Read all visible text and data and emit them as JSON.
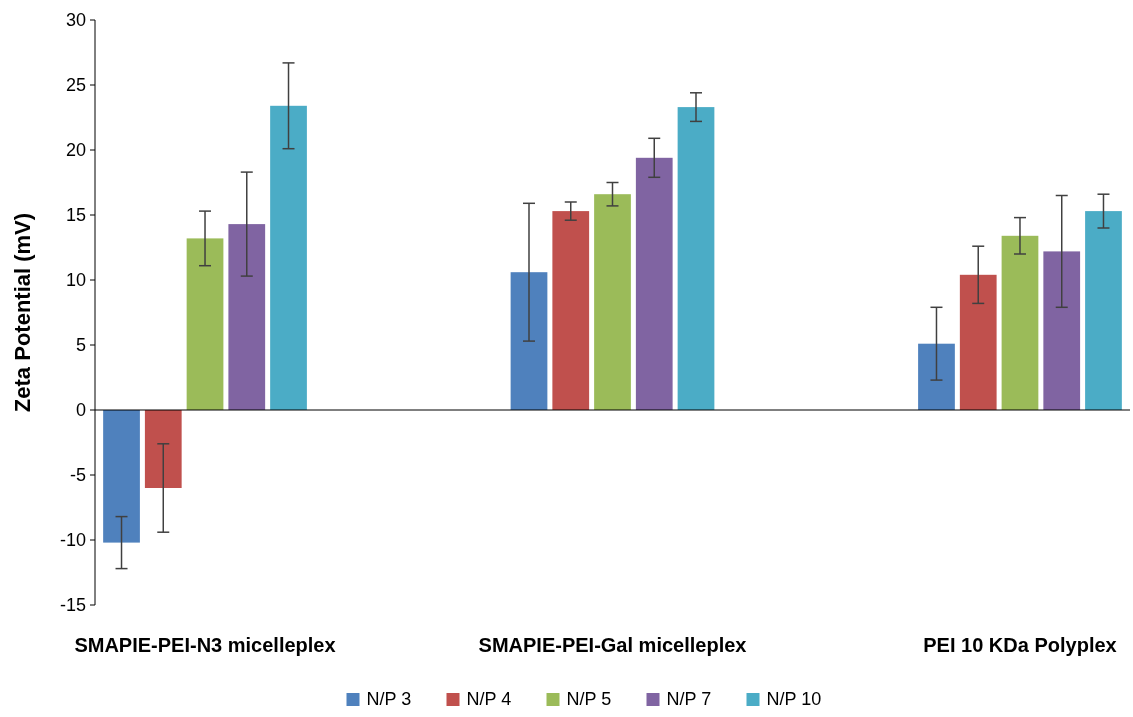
{
  "chart_data": {
    "type": "bar",
    "ylabel": "Zeta Potential (mV)",
    "categories": [
      "SMAPIE-PEI-N3 micelleplex",
      "SMAPIE-PEI-Gal micelleplex",
      "PEI 10 KDa Polyplex"
    ],
    "series": [
      {
        "name": "N/P  3",
        "color": "#4f81bd",
        "values": [
          -10.2,
          10.6,
          5.1
        ],
        "errors": [
          2.0,
          5.3,
          2.8
        ]
      },
      {
        "name": "N/P  4",
        "color": "#c0504d",
        "values": [
          -6.0,
          15.3,
          10.4
        ],
        "errors": [
          3.4,
          0.7,
          2.2
        ]
      },
      {
        "name": "N/P  5",
        "color": "#9bbb59",
        "values": [
          13.2,
          16.6,
          13.4
        ],
        "errors": [
          2.1,
          0.9,
          1.4
        ]
      },
      {
        "name": "N/P  7",
        "color": "#8064a2",
        "values": [
          14.3,
          19.4,
          12.2
        ],
        "errors": [
          4.0,
          1.5,
          4.3
        ]
      },
      {
        "name": "N/P  10",
        "color": "#4bacc6",
        "values": [
          23.4,
          23.3,
          15.3
        ],
        "errors": [
          3.3,
          1.1,
          1.3
        ]
      }
    ],
    "ylim": [
      -15,
      30
    ],
    "yticks": [
      -15,
      -10,
      -5,
      0,
      5,
      10,
      15,
      20,
      25,
      30
    ],
    "legend": "bottom"
  }
}
